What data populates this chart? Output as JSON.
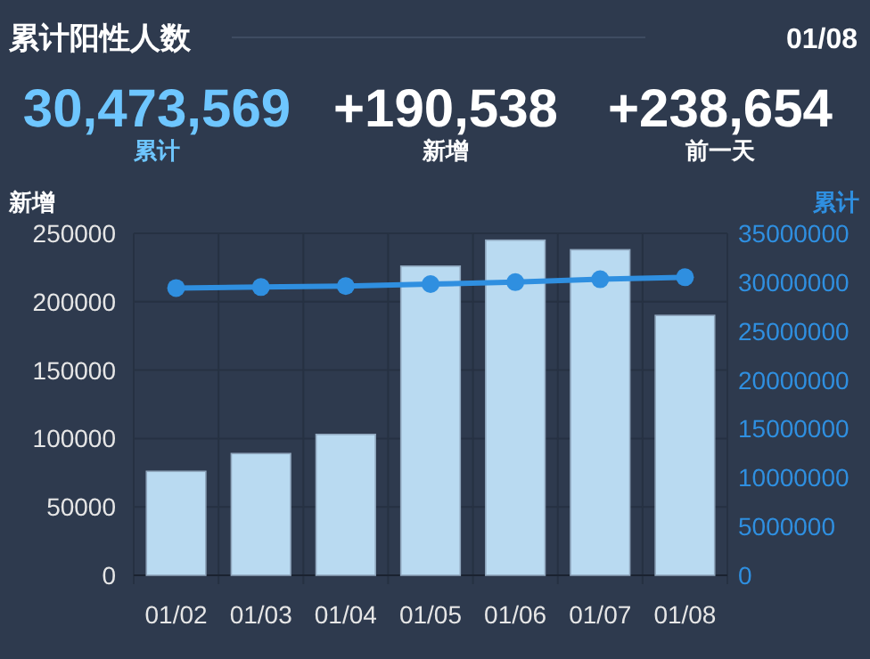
{
  "chart_data": [
    {
      "type": "other",
      "title": "累计阳性人数",
      "subtitle": "01/08",
      "annotations": [
        "30,473,569",
        "累计",
        "+190,538",
        "新增",
        "+238,654",
        "前一天"
      ]
    },
    {
      "type": "bar",
      "ylabel": "新增",
      "y2label": "累计",
      "categories": [
        "01/02",
        "01/03",
        "01/04",
        "01/05",
        "01/06",
        "01/07",
        "01/08"
      ],
      "series": [
        {
          "type": "bar",
          "color": "#b9daf1",
          "values": [
            76000,
            89000,
            103000,
            226000,
            245000,
            238000,
            190000
          ]
        },
        {
          "type": "line",
          "axis": "y2",
          "color": "#2f8fe0",
          "marker": "circle",
          "values": [
            29400000,
            29500000,
            29600000,
            29800000,
            30000000,
            30300000,
            30500000
          ]
        }
      ],
      "ylim": [
        0,
        250000
      ],
      "yticks": [
        0,
        50000,
        100000,
        150000,
        200000,
        250000
      ],
      "y2lim": [
        0,
        35000000
      ],
      "y2ticks": [
        0,
        5000000,
        10000000,
        15000000,
        20000000,
        25000000,
        30000000,
        35000000
      ],
      "grid": true
    }
  ]
}
